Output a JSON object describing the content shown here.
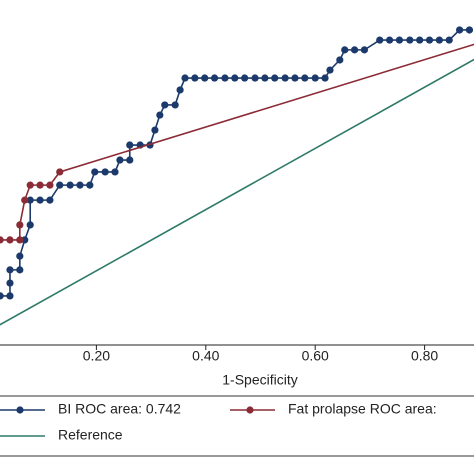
{
  "chart_data": {
    "type": "line",
    "x_label": "1-Specificity",
    "xlim": [
      0,
      1
    ],
    "ylim": [
      0,
      1
    ],
    "xticks": [
      {
        "value": 0.2,
        "label": "0.20"
      },
      {
        "value": 0.4,
        "label": "0.40"
      },
      {
        "value": 0.6,
        "label": "0.60"
      },
      {
        "value": 0.8,
        "label": "0.80"
      }
    ],
    "series": [
      {
        "name": "BI ROC area: 0.742",
        "color": "#1b3a6b",
        "markers": true,
        "x": [
          0.024,
          0.042,
          0.042,
          0.042,
          0.06,
          0.06,
          0.069,
          0.079,
          0.079,
          0.097,
          0.115,
          0.133,
          0.152,
          0.17,
          0.188,
          0.197,
          0.216,
          0.234,
          0.243,
          0.261,
          0.261,
          0.28,
          0.298,
          0.307,
          0.316,
          0.325,
          0.344,
          0.353,
          0.362,
          0.38,
          0.398,
          0.416,
          0.435,
          0.453,
          0.471,
          0.49,
          0.508,
          0.526,
          0.545,
          0.563,
          0.581,
          0.6,
          0.618,
          0.627,
          0.645,
          0.654,
          0.672,
          0.69,
          0.718,
          0.736,
          0.754,
          0.773,
          0.791,
          0.809,
          0.827,
          0.845,
          0.864,
          0.882
        ],
        "values": [
          0.118,
          0.118,
          0.16,
          0.203,
          0.203,
          0.248,
          0.301,
          0.35,
          0.431,
          0.431,
          0.431,
          0.48,
          0.48,
          0.48,
          0.48,
          0.523,
          0.523,
          0.523,
          0.562,
          0.562,
          0.611,
          0.611,
          0.611,
          0.66,
          0.709,
          0.742,
          0.742,
          0.791,
          0.83,
          0.83,
          0.83,
          0.83,
          0.83,
          0.83,
          0.83,
          0.83,
          0.83,
          0.83,
          0.83,
          0.83,
          0.83,
          0.83,
          0.83,
          0.856,
          0.889,
          0.922,
          0.922,
          0.922,
          0.954,
          0.954,
          0.954,
          0.954,
          0.954,
          0.954,
          0.954,
          0.954,
          0.987,
          0.987
        ]
      },
      {
        "name": "Fat prolapse ROC area:",
        "color": "#8b2b36",
        "markers": true,
        "x": [
          0.024,
          0.042,
          0.06,
          0.06,
          0.069,
          0.079,
          0.097,
          0.115,
          0.133,
          1
        ],
        "values": [
          0.301,
          0.301,
          0.301,
          0.35,
          0.431,
          0.48,
          0.48,
          0.48,
          0.523,
          1
        ]
      },
      {
        "name": "Reference",
        "color": "#2e7a68",
        "markers": false,
        "x": [
          0,
          1
        ],
        "values": [
          0,
          1
        ]
      }
    ]
  }
}
